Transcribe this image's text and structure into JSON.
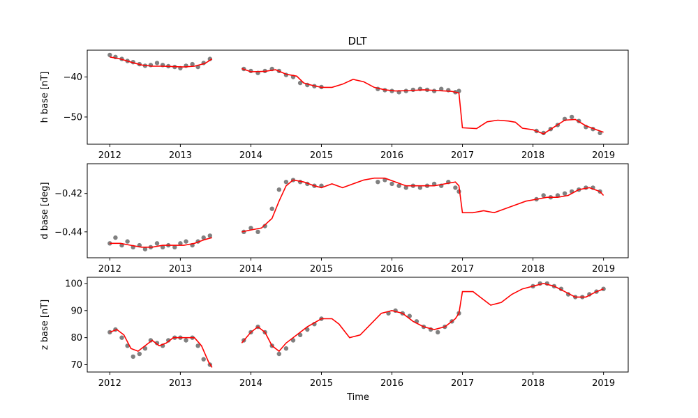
{
  "figure": {
    "title": "DLT",
    "xlabel": "Time",
    "x_ticks": [
      2012,
      2013,
      2014,
      2015,
      2016,
      2017,
      2018,
      2019
    ],
    "point_color": "#808080",
    "line_color": "#ff0000"
  },
  "chart_data": [
    {
      "type": "scatter",
      "title": "DLT",
      "xlabel": "",
      "ylabel": "h base [nT]",
      "xlim": [
        2011.68,
        2019.35
      ],
      "ylim": [
        -56.8,
        -33.3
      ],
      "y_ticks": [
        -40,
        -50
      ],
      "series": [
        {
          "kind": "points",
          "x": [
            2012.0,
            2012.08,
            2012.17,
            2012.25,
            2012.33,
            2012.42,
            2012.5,
            2012.58,
            2012.67,
            2012.75,
            2012.83,
            2012.92,
            2013.0,
            2013.08,
            2013.17,
            2013.25,
            2013.33,
            2013.42,
            2013.9,
            2014.0,
            2014.1,
            2014.2,
            2014.3,
            2014.4,
            2014.5,
            2014.6,
            2014.7,
            2014.8,
            2014.9,
            2015.0,
            2015.8,
            2015.9,
            2016.0,
            2016.1,
            2016.2,
            2016.3,
            2016.4,
            2016.5,
            2016.6,
            2016.7,
            2016.8,
            2016.9,
            2016.95,
            2018.05,
            2018.15,
            2018.25,
            2018.35,
            2018.45,
            2018.55,
            2018.65,
            2018.75,
            2018.85,
            2018.95
          ],
          "y": [
            -34.5,
            -35.0,
            -35.5,
            -36.0,
            -36.3,
            -36.8,
            -37.2,
            -37.0,
            -36.5,
            -37.0,
            -37.3,
            -37.5,
            -37.8,
            -37.2,
            -36.8,
            -37.5,
            -36.5,
            -35.5,
            -38.0,
            -38.5,
            -39.0,
            -38.5,
            -38.0,
            -38.5,
            -39.5,
            -40.0,
            -41.5,
            -42.0,
            -42.3,
            -42.5,
            -43.0,
            -43.3,
            -43.5,
            -43.8,
            -43.5,
            -43.2,
            -43.0,
            -43.2,
            -43.5,
            -43.0,
            -43.3,
            -43.8,
            -43.5,
            -53.5,
            -54.0,
            -53.0,
            -52.0,
            -50.5,
            -50.0,
            -51.0,
            -52.5,
            -53.0,
            -54.0
          ]
        },
        {
          "kind": "line",
          "x": [
            2012.0,
            2012.15,
            2012.3,
            2012.45,
            2012.6,
            2012.75,
            2012.9,
            2013.05,
            2013.2,
            2013.35,
            2013.45,
            2013.87,
            2014.0,
            2014.2,
            2014.35,
            2014.5,
            2014.65,
            2014.75,
            2014.85,
            2015.0,
            2015.15,
            2015.3,
            2015.45,
            2015.6,
            2015.75,
            2015.9,
            2016.05,
            2016.25,
            2016.45,
            2016.65,
            2016.85,
            2016.95,
            2017.0,
            2017.1,
            2017.2,
            2017.35,
            2017.5,
            2017.65,
            2017.75,
            2017.85,
            2018.0,
            2018.15,
            2018.3,
            2018.45,
            2018.6,
            2018.75,
            2018.9,
            2019.0
          ],
          "y": [
            -35.0,
            -35.5,
            -36.3,
            -37.0,
            -37.3,
            -37.3,
            -37.4,
            -37.5,
            -37.3,
            -36.6,
            -35.5,
            -37.9,
            -38.7,
            -38.6,
            -38.2,
            -39.3,
            -39.8,
            -41.5,
            -42.0,
            -42.6,
            -42.6,
            -41.8,
            -40.6,
            -41.2,
            -42.6,
            -43.2,
            -43.5,
            -43.4,
            -43.2,
            -43.4,
            -43.6,
            -44.0,
            -52.7,
            -52.8,
            -52.9,
            -51.2,
            -50.8,
            -51.0,
            -51.3,
            -52.8,
            -53.2,
            -54.2,
            -52.5,
            -50.8,
            -50.6,
            -52.2,
            -53.2,
            -53.8
          ]
        }
      ]
    },
    {
      "type": "scatter",
      "title": "",
      "xlabel": "",
      "ylabel": "d base [deg]",
      "xlim": [
        2011.68,
        2019.35
      ],
      "ylim": [
        -0.4535,
        -0.4045
      ],
      "y_ticks": [
        -0.42,
        -0.44
      ],
      "series": [
        {
          "kind": "points",
          "x": [
            2012.0,
            2012.08,
            2012.17,
            2012.25,
            2012.33,
            2012.42,
            2012.5,
            2012.58,
            2012.67,
            2012.75,
            2012.83,
            2012.92,
            2013.0,
            2013.08,
            2013.17,
            2013.25,
            2013.33,
            2013.42,
            2013.9,
            2014.0,
            2014.1,
            2014.2,
            2014.3,
            2014.4,
            2014.5,
            2014.6,
            2014.7,
            2014.8,
            2014.9,
            2015.0,
            2015.8,
            2015.9,
            2016.0,
            2016.1,
            2016.2,
            2016.3,
            2016.4,
            2016.5,
            2016.6,
            2016.7,
            2016.8,
            2016.9,
            2016.95,
            2018.05,
            2018.15,
            2018.25,
            2018.35,
            2018.45,
            2018.55,
            2018.65,
            2018.75,
            2018.85,
            2018.95
          ],
          "y": [
            -0.446,
            -0.443,
            -0.447,
            -0.445,
            -0.448,
            -0.447,
            -0.449,
            -0.448,
            -0.446,
            -0.448,
            -0.447,
            -0.448,
            -0.446,
            -0.445,
            -0.447,
            -0.445,
            -0.443,
            -0.442,
            -0.44,
            -0.438,
            -0.44,
            -0.437,
            -0.428,
            -0.418,
            -0.414,
            -0.413,
            -0.414,
            -0.415,
            -0.416,
            -0.416,
            -0.414,
            -0.413,
            -0.415,
            -0.416,
            -0.417,
            -0.416,
            -0.417,
            -0.416,
            -0.415,
            -0.416,
            -0.414,
            -0.417,
            -0.419,
            -0.423,
            -0.421,
            -0.422,
            -0.421,
            -0.42,
            -0.419,
            -0.418,
            -0.417,
            -0.417,
            -0.419
          ]
        },
        {
          "kind": "line",
          "x": [
            2012.0,
            2012.15,
            2012.3,
            2012.45,
            2012.6,
            2012.75,
            2012.9,
            2013.05,
            2013.2,
            2013.35,
            2013.45,
            2013.87,
            2014.0,
            2014.15,
            2014.3,
            2014.4,
            2014.5,
            2014.6,
            2014.75,
            2014.9,
            2015.0,
            2015.15,
            2015.3,
            2015.45,
            2015.6,
            2015.75,
            2015.9,
            2016.05,
            2016.2,
            2016.4,
            2016.6,
            2016.75,
            2016.9,
            2016.95,
            2017.0,
            2017.15,
            2017.3,
            2017.45,
            2017.6,
            2017.75,
            2017.9,
            2018.05,
            2018.2,
            2018.35,
            2018.5,
            2018.65,
            2018.8,
            2018.95,
            2019.0
          ],
          "y": [
            -0.446,
            -0.446,
            -0.447,
            -0.448,
            -0.448,
            -0.447,
            -0.447,
            -0.447,
            -0.446,
            -0.444,
            -0.443,
            -0.44,
            -0.439,
            -0.438,
            -0.433,
            -0.424,
            -0.416,
            -0.413,
            -0.414,
            -0.416,
            -0.417,
            -0.415,
            -0.417,
            -0.415,
            -0.413,
            -0.412,
            -0.412,
            -0.414,
            -0.416,
            -0.416,
            -0.416,
            -0.415,
            -0.414,
            -0.416,
            -0.43,
            -0.43,
            -0.429,
            -0.43,
            -0.428,
            -0.426,
            -0.424,
            -0.423,
            -0.422,
            -0.422,
            -0.421,
            -0.418,
            -0.417,
            -0.419,
            -0.421
          ]
        }
      ]
    },
    {
      "type": "scatter",
      "title": "",
      "xlabel": "Time",
      "ylabel": "z base [nT]",
      "xlim": [
        2011.68,
        2019.35
      ],
      "ylim": [
        67.3,
        102.3
      ],
      "y_ticks": [
        100,
        90,
        80,
        70
      ],
      "series": [
        {
          "kind": "points",
          "x": [
            2012.0,
            2012.08,
            2012.17,
            2012.25,
            2012.33,
            2012.42,
            2012.5,
            2012.58,
            2012.67,
            2012.75,
            2012.83,
            2012.92,
            2013.0,
            2013.08,
            2013.17,
            2013.25,
            2013.33,
            2013.42,
            2013.9,
            2014.0,
            2014.1,
            2014.2,
            2014.3,
            2014.4,
            2014.5,
            2014.6,
            2014.7,
            2014.8,
            2014.9,
            2015.0,
            2015.95,
            2016.05,
            2016.15,
            2016.25,
            2016.35,
            2016.45,
            2016.55,
            2016.65,
            2016.75,
            2016.85,
            2016.95,
            2018.0,
            2018.1,
            2018.2,
            2018.3,
            2018.4,
            2018.5,
            2018.6,
            2018.7,
            2018.8,
            2018.9,
            2019.0
          ],
          "y": [
            82,
            83,
            80,
            77,
            73,
            74,
            76,
            79,
            78,
            77,
            79,
            80,
            80,
            79,
            80,
            77,
            72,
            70,
            79,
            82,
            84,
            82,
            77,
            74,
            76,
            79,
            81,
            83,
            85,
            87,
            89,
            90,
            89,
            88,
            86,
            84,
            83,
            82,
            84,
            86,
            89,
            99,
            100,
            100,
            99,
            98,
            96,
            95,
            95,
            96,
            97,
            98
          ]
        },
        {
          "kind": "line",
          "x": [
            2012.0,
            2012.1,
            2012.2,
            2012.3,
            2012.4,
            2012.5,
            2012.6,
            2012.7,
            2012.8,
            2012.9,
            2013.0,
            2013.1,
            2013.2,
            2013.3,
            2013.4,
            2013.45,
            2013.87,
            2014.0,
            2014.1,
            2014.2,
            2014.3,
            2014.4,
            2014.5,
            2014.65,
            2014.8,
            2015.0,
            2015.15,
            2015.25,
            2015.4,
            2015.55,
            2015.7,
            2015.85,
            2016.0,
            2016.15,
            2016.3,
            2016.45,
            2016.6,
            2016.75,
            2016.9,
            2016.95,
            2017.0,
            2017.15,
            2017.25,
            2017.4,
            2017.55,
            2017.7,
            2017.85,
            2018.0,
            2018.15,
            2018.3,
            2018.45,
            2018.6,
            2018.75,
            2018.9,
            2019.0
          ],
          "y": [
            82,
            83,
            81,
            76,
            75,
            77,
            79,
            77,
            78,
            80,
            80,
            80,
            80,
            77,
            71,
            69,
            78,
            82,
            84,
            82,
            77,
            75,
            78,
            81,
            84,
            87,
            87,
            85,
            80,
            81,
            85,
            89,
            90,
            89,
            86,
            84,
            83,
            84,
            87,
            89,
            97,
            97,
            95,
            92,
            93,
            96,
            98,
            99,
            100,
            99,
            97,
            95,
            95,
            97,
            98
          ]
        }
      ]
    }
  ]
}
